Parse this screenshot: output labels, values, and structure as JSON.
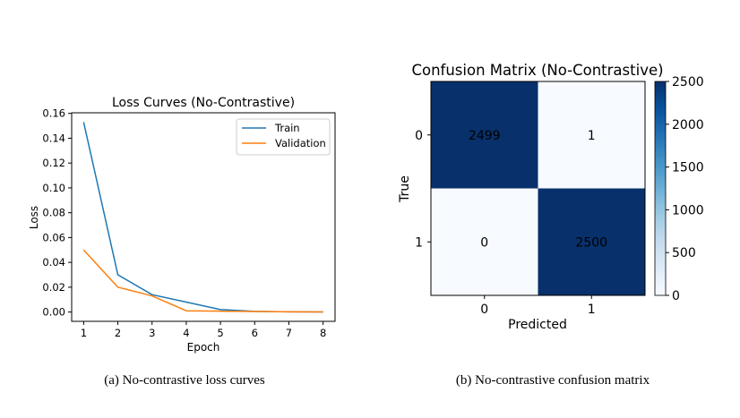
{
  "captions": {
    "left": "(a)  No-contrastive loss curves",
    "right": "(b)  No-contrastive confusion matrix"
  },
  "chart_data": [
    {
      "type": "line",
      "title": "Loss Curves (No-Contrastive)",
      "xlabel": "Epoch",
      "ylabel": "Loss",
      "x": [
        1,
        2,
        3,
        4,
        5,
        6,
        7,
        8
      ],
      "xticks": [
        "1",
        "2",
        "3",
        "4",
        "5",
        "6",
        "7",
        "8"
      ],
      "yticks": [
        "0.00",
        "0.02",
        "0.04",
        "0.06",
        "0.08",
        "0.10",
        "0.12",
        "0.14",
        "0.16"
      ],
      "ylim": [
        -0.0075,
        0.1605
      ],
      "xlim": [
        0.65,
        8.35
      ],
      "grid": false,
      "legend": "top-right",
      "series": [
        {
          "name": "Train",
          "color": "#1f77b4",
          "values": [
            0.153,
            0.03,
            0.014,
            0.008,
            0.002,
            0.0005,
            0.0002,
            0.0001
          ]
        },
        {
          "name": "Validation",
          "color": "#ff7f0e",
          "values": [
            0.05,
            0.02,
            0.013,
            0.001,
            0.0007,
            0.0004,
            0.0002,
            0.0001
          ]
        }
      ]
    },
    {
      "type": "heatmap",
      "title": "Confusion Matrix (No-Contrastive)",
      "xlabel": "Predicted",
      "ylabel": "True",
      "xticks": [
        "0",
        "1"
      ],
      "yticks": [
        "0",
        "1"
      ],
      "values": [
        [
          2499,
          1
        ],
        [
          0,
          2500
        ]
      ],
      "colormap": "Blues",
      "colorbar": {
        "min": 0,
        "max": 2500,
        "ticks": [
          "0",
          "500",
          "1000",
          "1500",
          "2000",
          "2500"
        ]
      }
    }
  ]
}
